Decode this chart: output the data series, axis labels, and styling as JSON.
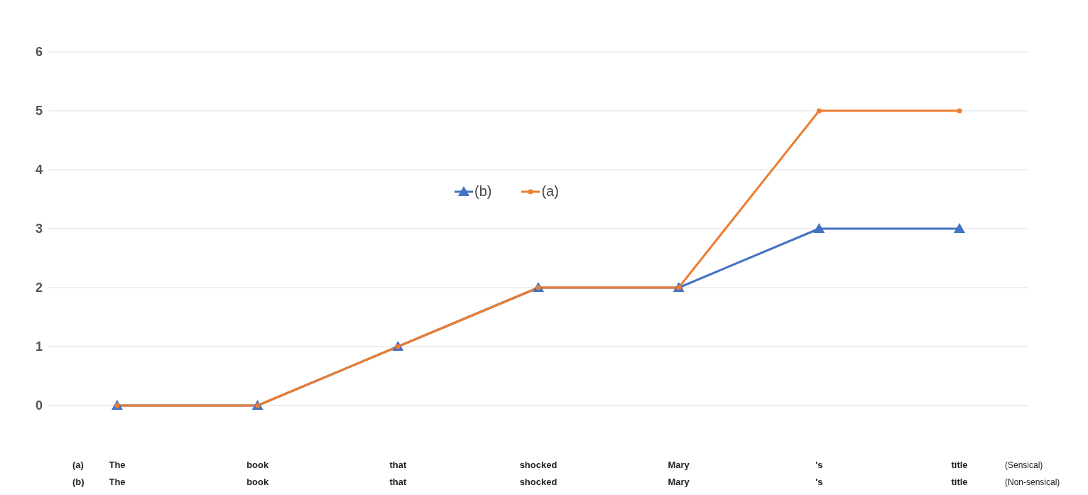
{
  "chart_data": {
    "type": "line",
    "categories": [
      "The\nThe",
      "book\nbook",
      "that\nthat",
      "shocked\nshocked",
      "Mary\nMary",
      "'s\n's",
      "title\ntitle"
    ],
    "series": [
      {
        "name": "(b)",
        "color": "#4472c4",
        "marker": "triangle",
        "values": [
          0,
          0,
          1,
          2,
          2,
          3,
          3
        ]
      },
      {
        "name": "(a)",
        "color": "#ed7d31",
        "marker": "circle",
        "values": [
          0,
          0,
          1,
          2,
          2,
          5,
          5
        ]
      }
    ],
    "annotations": [
      "(a)",
      "(b)",
      "(Sensical)",
      "(Non-sensical)"
    ],
    "ylim": [
      0,
      6
    ],
    "yticks": [
      0,
      1,
      2,
      3,
      4,
      5,
      6
    ],
    "grid": "y",
    "legend": "top",
    "line_style": "solid"
  }
}
